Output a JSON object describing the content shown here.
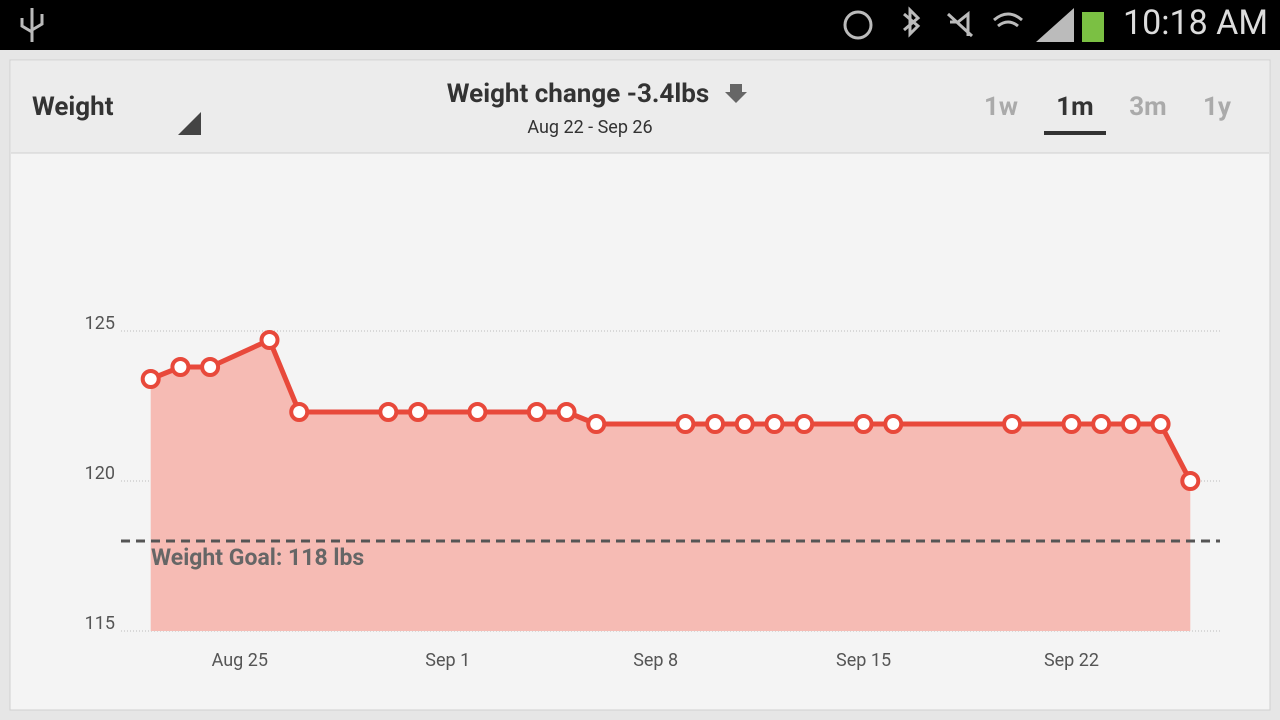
{
  "status_bar": {
    "time": "10:18 AM"
  },
  "header": {
    "metric": "Weight",
    "title": "Weight change -3.4lbs",
    "date_range": "Aug 22 - Sep 26",
    "ranges": [
      "1w",
      "1m",
      "3m",
      "1y"
    ],
    "selected_range": "1m"
  },
  "chart_data": {
    "type": "line",
    "color": "#e8493b",
    "fill_color": "#f6bbb4",
    "x": [
      "Aug 22",
      "Aug 23",
      "Aug 24",
      "Aug 26",
      "Aug 27",
      "Aug 30",
      "Aug 31",
      "Sep 2",
      "Sep 4",
      "Sep 5",
      "Sep 6",
      "Sep 9",
      "Sep 10",
      "Sep 11",
      "Sep 12",
      "Sep 13",
      "Sep 15",
      "Sep 16",
      "Sep 20",
      "Sep 22",
      "Sep 23",
      "Sep 24",
      "Sep 25",
      "Sep 26"
    ],
    "values": [
      123.4,
      123.8,
      123.8,
      124.7,
      122.3,
      122.3,
      122.3,
      122.3,
      122.3,
      122.3,
      121.9,
      121.9,
      121.9,
      121.9,
      121.9,
      121.9,
      121.9,
      121.9,
      121.9,
      121.9,
      121.9,
      121.9,
      121.9,
      120.0
    ],
    "xlim": [
      "Aug 21",
      "Sep 27"
    ],
    "xticks": [
      "Aug 25",
      "Sep 1",
      "Sep 8",
      "Sep 15",
      "Sep 22"
    ],
    "ylim": [
      115,
      130
    ],
    "yticks": [
      115,
      120,
      125
    ],
    "grid": true,
    "goal": 118,
    "goal_label": "Weight Goal: 118 lbs"
  }
}
